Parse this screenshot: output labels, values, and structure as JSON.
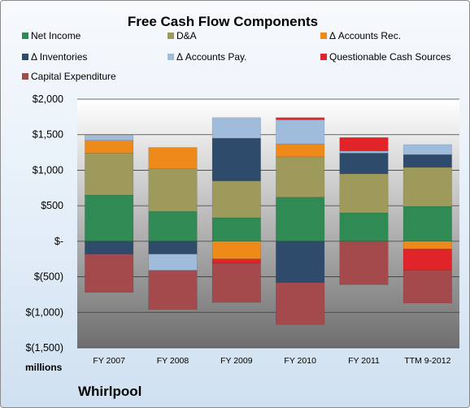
{
  "chart_data": {
    "type": "bar",
    "stacked": true,
    "title": "Free Cash Flow Components",
    "units_label": "millions",
    "company": "Whirlpool",
    "categories": [
      "FY 2007",
      "FY 2008",
      "FY 2009",
      "FY 2010",
      "FY 2011",
      "TTM 9-2012"
    ],
    "y_ticks": [
      "$2,000",
      "$1,500",
      "$1,000",
      "$500",
      "$-",
      "$(500)",
      "$(1,000)",
      "$(1,500)"
    ],
    "ylim": [
      -1500,
      2000
    ],
    "grid": true,
    "legend_position": "top",
    "series": [
      {
        "name": "Net Income",
        "color": "#2f8a53",
        "values": [
          650,
          420,
          330,
          620,
          400,
          490
        ]
      },
      {
        "name": "D&A",
        "color": "#9e9a5c",
        "values": [
          590,
          600,
          520,
          570,
          550,
          550
        ]
      },
      {
        "name": "Δ Accounts Rec.",
        "color": "#ee8a1a",
        "values": [
          180,
          300,
          -250,
          180,
          0,
          -110
        ]
      },
      {
        "name": "Δ Inventories",
        "color": "#2e4b6c",
        "values": [
          -180,
          -180,
          600,
          -580,
          290,
          180
        ]
      },
      {
        "name": "Δ Accounts Pay.",
        "color": "#9fbcdd",
        "values": [
          70,
          -230,
          290,
          340,
          30,
          140
        ]
      },
      {
        "name": "Questionable Cash Sources",
        "color": "#e02429",
        "values": [
          0,
          0,
          -60,
          30,
          190,
          -300
        ]
      },
      {
        "name": "Capital Expenditure",
        "color": "#a54a4c",
        "values": [
          -540,
          -550,
          -550,
          -590,
          -610,
          -460
        ]
      }
    ]
  }
}
